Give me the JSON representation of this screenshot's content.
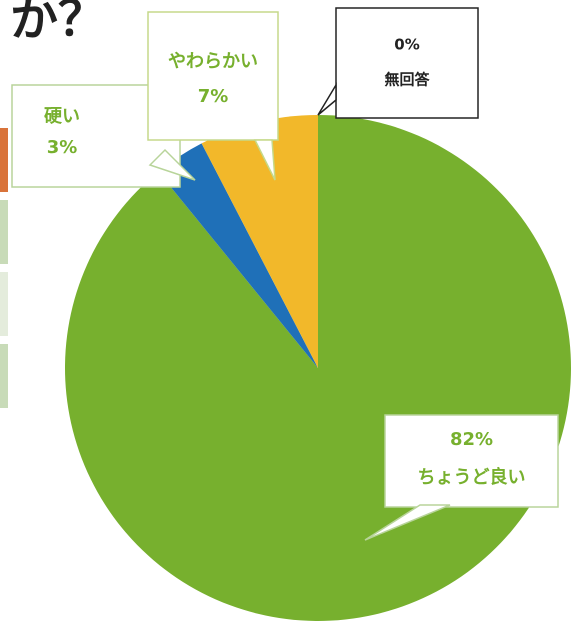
{
  "chart_data": {
    "type": "pie",
    "title": "か？",
    "categories": [
      "ちょうど良い",
      "硬い",
      "やわらかい",
      "無回答"
    ],
    "values": [
      82,
      3,
      7,
      0
    ],
    "value_labels": [
      "82%",
      "3%",
      "7%",
      "0%"
    ],
    "colors": [
      "#77b02e",
      "#1f70b8",
      "#f2b82a",
      "#a0a0a0"
    ]
  }
}
